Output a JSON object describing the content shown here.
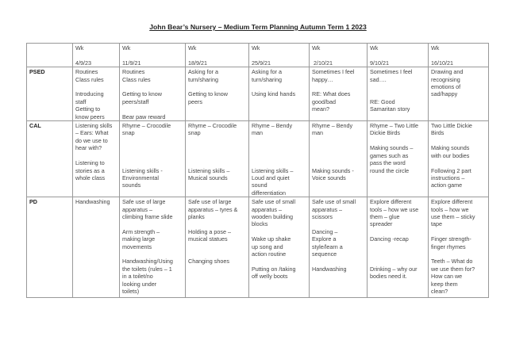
{
  "title": "John Bear’s Nursery – Medium Term Planning Autumn Term 1 2023",
  "weeks": [
    "Wk\n\n4/9/23",
    "Wk\n\n11/9/21",
    "Wk\n\n18/9/21",
    "Wk\n\n25/9/21",
    "Wk\n\n 2/10/21",
    "Wk\n\n9/10/21",
    "Wk\n\n16/10/21"
  ],
  "rows": [
    {
      "area": "PSED",
      "cells": [
        "Routines\nClass rules\n\nIntroducing\nstaff\nGetting to\nknow peers",
        "Routines\nClass rules\n\nGetting to know\npeers/staff\n\nBear paw reward",
        "Asking for a\nturn/sharing\n\nGetting to know\npeers",
        "Asking for a\nturn/sharing\n\nUsing kind hands",
        "Sometimes I feel\nhappy…\n\nRE: What does\ngood/bad\nmean?",
        "Sometimes I feel\nsad….\n\n\nRE: Good\nSamaritan story",
        "Drawing and\nrecognising\nemotions of\nsad/happy"
      ]
    },
    {
      "area": "CAL",
      "cells": [
        "Listening skills\n– Ears: What\ndo we use to\nhear with?\n\nListening to\nstories as a\nwhole class",
        "Rhyme – Crocodile\nsnap\n\n\n\n\nListening skills -\nEnvironmental\nsounds",
        "Rhyme – Crocodile\nsnap\n\n\n\n\nListening skills –\nMusical sounds",
        "Rhyme – Bendy\nman\n\n\n\n\nListening skills –\nLoud and quiet\nsound\ndifferentiation",
        "Rhyme – Bendy\nman\n\n\n\n\nMaking sounds -\nVoice sounds",
        "Rhyme – Two Little\nDickie Birds\n\nMaking sounds –\ngames such as\npass the word\nround the circle",
        "Two Little Dickie\nBirds\n\nMaking sounds\nwith our bodies\n\nFollowing 2 part\ninstructions –\naction game"
      ]
    },
    {
      "area": "PD",
      "cells": [
        "Handwashing",
        "Safe use of large\napparatus –\nclimbing frame slide\n\nArm strength –\nmaking large\nmovements\n\nHandwashing/Using\nthe toilets (rules – 1\nin a toilet/no\nlooking under\ntoilets)",
        "Safe use of large\napparatus – tyres &\nplanks\n\nHolding a pose –\nmusical statues\n\n\nChanging shoes",
        "Safe use of small\napparatus –\nwooden building\nblocks\n\nWake up shake\nup song and\naction routine\n\nPutting on /taking\noff welly boots",
        "Safe use of small\napparatus –\nscissors\n\nDancing –\nExplore a\nstyle/learn a\nsequence\n\nHandwashing",
        "Explore different\ntools – how we use\nthem – glue\nspreader\n\nDancing -recap\n\n\n\nDrinking – why our\nbodies need it.",
        "Explore different\ntools – how we\nuse them – sticky\ntape\n\nFinger strength-\nfinger rhymes\n\nTeeth – What do\nwe use them for?\nHow can we\nkeep them\nclean?"
      ]
    }
  ]
}
